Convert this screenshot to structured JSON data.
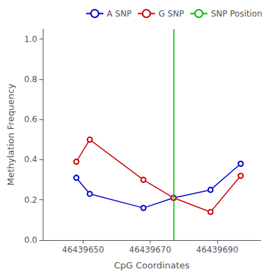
{
  "chart_data": {
    "type": "line",
    "xlabel": "CpG Coordinates",
    "ylabel": "Methylation Frequency",
    "x": [
      46439648,
      46439652,
      46439668,
      46439677,
      46439688,
      46439697
    ],
    "series": [
      {
        "name": "A SNP",
        "color": "#0000CC",
        "marker": "circle",
        "values": [
          0.31,
          0.23,
          0.16,
          0.21,
          0.25,
          0.38
        ]
      },
      {
        "name": "G SNP",
        "color": "#CC0000",
        "marker": "circle",
        "values": [
          0.39,
          0.5,
          0.3,
          0.21,
          0.14,
          0.32
        ]
      }
    ],
    "vlines": [
      {
        "name": "SNP Position",
        "x": 46439677,
        "color": "#00BB00"
      }
    ],
    "xlim": [
      46439638,
      46439703
    ],
    "xticks": [
      46439650,
      46439670,
      46439690
    ],
    "ylim": [
      0.0,
      1.05
    ],
    "yticks": [
      {
        "value": 0.0,
        "label": "0.0"
      },
      0.2,
      0.4,
      0.6,
      0.8,
      {
        "value": 1.0,
        "label": "1.0"
      }
    ],
    "grid": false,
    "legend": "upper right"
  }
}
